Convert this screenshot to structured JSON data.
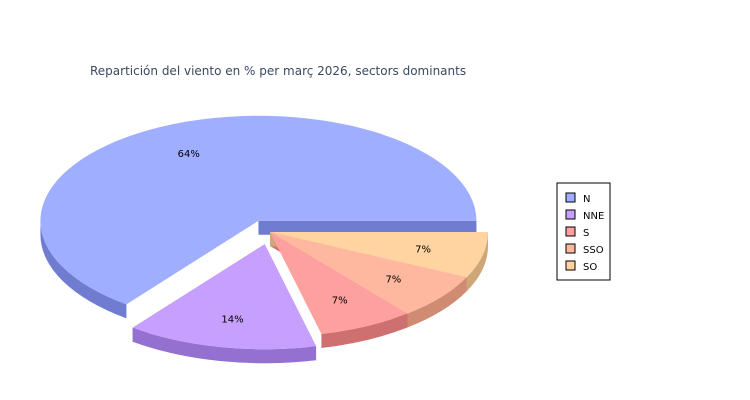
{
  "chart_data": {
    "type": "pie",
    "title": "Repartición del viento en % per març 2026, sectors dominants",
    "legend_position": "right",
    "slices": [
      {
        "name": "N",
        "value": 64,
        "label": "64%",
        "color": "#a0aeff",
        "side": "#6f7ccf",
        "exploded": true
      },
      {
        "name": "NNE",
        "value": 14,
        "label": "14%",
        "color": "#c7a0ff",
        "side": "#9470d0",
        "exploded": true
      },
      {
        "name": "S",
        "value": 7,
        "label": "7%",
        "color": "#ffa0a0",
        "side": "#cf7070",
        "exploded": false
      },
      {
        "name": "SSO",
        "value": 7,
        "label": "7%",
        "color": "#ffb8a0",
        "side": "#cf8c72",
        "exploded": false
      },
      {
        "name": "SO",
        "value": 7,
        "label": "7%",
        "color": "#ffd4a0",
        "side": "#cea678",
        "exploded": false
      }
    ]
  }
}
